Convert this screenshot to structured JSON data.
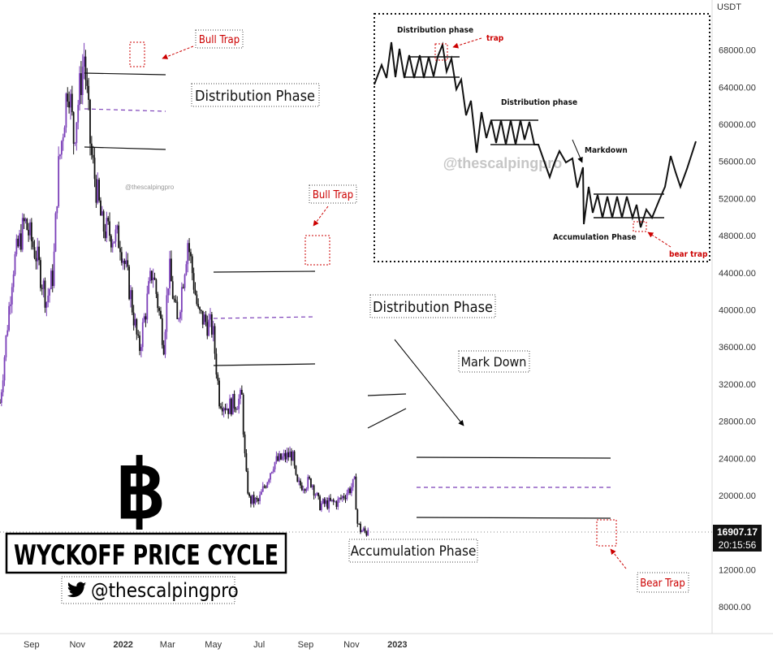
{
  "chart_data": {
    "type": "candlestick",
    "symbol_currency": "USDT",
    "price_axis_labels": [
      "68000.00",
      "64000.00",
      "60000.00",
      "56000.00",
      "52000.00",
      "48000.00",
      "44000.00",
      "40000.00",
      "36000.00",
      "32000.00",
      "28000.00",
      "24000.00",
      "20000.00",
      "12000.00",
      "8000.00"
    ],
    "y_ticks": [
      68000,
      64000,
      60000,
      56000,
      52000,
      48000,
      44000,
      40000,
      36000,
      32000,
      28000,
      24000,
      20000,
      12000,
      8000
    ],
    "ylim": [
      6000,
      72000
    ],
    "time_axis": [
      "Sep",
      "Nov",
      "2022",
      "Mar",
      "May",
      "Jul",
      "Sep",
      "Nov",
      "2023"
    ],
    "time_axis_bold": [
      "2022",
      "2023"
    ],
    "last_price": "16907.17",
    "countdown": "20:15:56",
    "last_price_value": 16907.17,
    "waypoints": [
      [
        "2021-07-21",
        30000
      ],
      [
        "2021-08-07",
        44500
      ],
      [
        "2021-08-23",
        49500
      ],
      [
        "2021-09-07",
        46000
      ],
      [
        "2021-09-21",
        41000
      ],
      [
        "2021-09-30",
        44000
      ],
      [
        "2021-10-06",
        54500
      ],
      [
        "2021-10-20",
        65000
      ],
      [
        "2021-10-27",
        58500
      ],
      [
        "2021-11-10",
        67500
      ],
      [
        "2021-11-19",
        57000
      ],
      [
        "2021-12-04",
        49000
      ],
      [
        "2021-12-10",
        48500
      ],
      [
        "2021-12-28",
        47500
      ],
      [
        "2022-01-10",
        42000
      ],
      [
        "2022-01-22",
        35500
      ],
      [
        "2022-02-09",
        44500
      ],
      [
        "2022-02-24",
        36500
      ],
      [
        "2022-03-03",
        44500
      ],
      [
        "2022-03-14",
        38500
      ],
      [
        "2022-03-28",
        47500
      ],
      [
        "2022-04-11",
        39500
      ],
      [
        "2022-04-30",
        38000
      ],
      [
        "2022-05-09",
        30500
      ],
      [
        "2022-05-20",
        29500
      ],
      [
        "2022-06-08",
        30500
      ],
      [
        "2022-06-13",
        22500
      ],
      [
        "2022-06-18",
        19500
      ],
      [
        "2022-06-30",
        19300
      ],
      [
        "2022-07-20",
        23500
      ],
      [
        "2022-08-14",
        24500
      ],
      [
        "2022-08-20",
        21000
      ],
      [
        "2022-09-09",
        21500
      ],
      [
        "2022-09-19",
        19000
      ],
      [
        "2022-10-14",
        19300
      ],
      [
        "2022-11-05",
        21300
      ],
      [
        "2022-11-09",
        17000
      ],
      [
        "2022-11-13",
        16300
      ],
      [
        "2022-11-21",
        16000
      ],
      [
        "2022-11-24",
        16900
      ]
    ],
    "annotations": {
      "bull_trap_1": "Bull Trap",
      "bull_trap_2": "Bull Trap",
      "bear_trap": "Bear Trap",
      "distribution_1": "Distribution Phase",
      "distribution_2": "Distribution Phase",
      "mark_down": "Mark Down",
      "accumulation": "Accumulation Phase"
    },
    "watermark": "@thescalpingpro"
  },
  "inset": {
    "distribution_top": "Distribution phase",
    "trap": "trap",
    "distribution_mid": "Distribution phase",
    "markdown": "Markdown",
    "accumulation": "Accumulation Phase",
    "bear_trap": "bear trap",
    "watermark": "@thescalpingpro"
  },
  "branding": {
    "title": "WYCKOFF PRICE CYCLE",
    "handle": "@thescalpingpro",
    "bitcoin_glyph": "฿"
  },
  "colors": {
    "up": "#7b3fb8",
    "down": "#111111",
    "trap": "#cc0000",
    "dashed": "#7b3fb8"
  }
}
